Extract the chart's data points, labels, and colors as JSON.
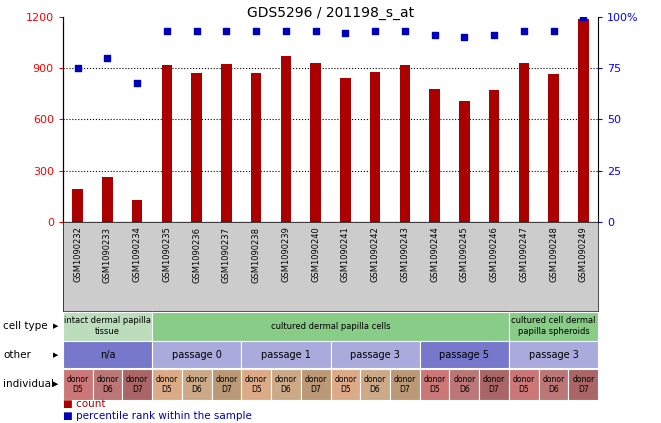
{
  "title": "GDS5296 / 201198_s_at",
  "samples": [
    "GSM1090232",
    "GSM1090233",
    "GSM1090234",
    "GSM1090235",
    "GSM1090236",
    "GSM1090237",
    "GSM1090238",
    "GSM1090239",
    "GSM1090240",
    "GSM1090241",
    "GSM1090242",
    "GSM1090243",
    "GSM1090244",
    "GSM1090245",
    "GSM1090246",
    "GSM1090247",
    "GSM1090248",
    "GSM1090249"
  ],
  "counts": [
    195,
    265,
    130,
    920,
    870,
    925,
    870,
    970,
    930,
    840,
    875,
    920,
    780,
    710,
    770,
    930,
    865,
    1185
  ],
  "percentiles": [
    75,
    80,
    68,
    93,
    93,
    93,
    93,
    93,
    93,
    92,
    93,
    93,
    91,
    90,
    91,
    93,
    93,
    100
  ],
  "ylim_left": [
    0,
    1200
  ],
  "ylim_right": [
    0,
    100
  ],
  "yticks_left": [
    0,
    300,
    600,
    900,
    1200
  ],
  "yticks_right": [
    0,
    25,
    50,
    75,
    100
  ],
  "bar_color": "#aa0000",
  "dot_color": "#0000bb",
  "grid_color": "black",
  "cell_type_labels": [
    {
      "text": "intact dermal papilla\ntissue",
      "start": 0,
      "end": 3,
      "color": "#bbddbb"
    },
    {
      "text": "cultured dermal papilla cells",
      "start": 3,
      "end": 15,
      "color": "#88cc88"
    },
    {
      "text": "cultured cell dermal\npapilla spheroids",
      "start": 15,
      "end": 18,
      "color": "#88cc88"
    }
  ],
  "other_labels": [
    {
      "text": "n/a",
      "start": 0,
      "end": 3,
      "color": "#7777cc"
    },
    {
      "text": "passage 0",
      "start": 3,
      "end": 6,
      "color": "#aaaadd"
    },
    {
      "text": "passage 1",
      "start": 6,
      "end": 9,
      "color": "#aaaadd"
    },
    {
      "text": "passage 3",
      "start": 9,
      "end": 12,
      "color": "#aaaadd"
    },
    {
      "text": "passage 5",
      "start": 12,
      "end": 15,
      "color": "#7777cc"
    },
    {
      "text": "passage 3",
      "start": 15,
      "end": 18,
      "color": "#aaaadd"
    }
  ],
  "individual_D5_color_groups": [
    {
      "indices": [
        0,
        1,
        2
      ],
      "colors": [
        "#dd8888",
        "#cc8888",
        "#bb7777"
      ]
    },
    {
      "indices": [
        3,
        4,
        5
      ],
      "colors": [
        "#ddaa99",
        "#ccaa99",
        "#bb9988"
      ]
    },
    {
      "indices": [
        6,
        7,
        8
      ],
      "colors": [
        "#ddaa99",
        "#ccaa99",
        "#bb9988"
      ]
    },
    {
      "indices": [
        9,
        10,
        11
      ],
      "colors": [
        "#ddaa99",
        "#ccaa99",
        "#bb9988"
      ]
    },
    {
      "indices": [
        12,
        13,
        14
      ],
      "colors": [
        "#dd8888",
        "#cc8888",
        "#bb7777"
      ]
    },
    {
      "indices": [
        15,
        16,
        17
      ],
      "colors": [
        "#dd8888",
        "#cc8888",
        "#bb7777"
      ]
    }
  ],
  "individual_colors": [
    "#cc7777",
    "#bb7777",
    "#aa6666",
    "#ddaa88",
    "#ccaa88",
    "#bb9977",
    "#ddaa88",
    "#ccaa88",
    "#bb9977",
    "#ddaa88",
    "#ccaa88",
    "#bb9977",
    "#cc7777",
    "#bb7777",
    "#aa6666",
    "#cc7777",
    "#bb7777",
    "#aa6666"
  ],
  "individual_texts": [
    "donor\nD5",
    "donor\nD6",
    "donor\nD7",
    "donor\nD5",
    "donor\nD6",
    "donor\nD7",
    "donor\nD5",
    "donor\nD6",
    "donor\nD7",
    "donor\nD5",
    "donor\nD6",
    "donor\nD7",
    "donor\nD5",
    "donor\nD6",
    "donor\nD7",
    "donor\nD5",
    "donor\nD6",
    "donor\nD7"
  ],
  "row_labels": [
    "cell type",
    "other",
    "individual"
  ],
  "legend_count": "count",
  "legend_percentile": "percentile rank within the sample",
  "bar_width": 0.35,
  "xaxis_bg_color": "#cccccc"
}
